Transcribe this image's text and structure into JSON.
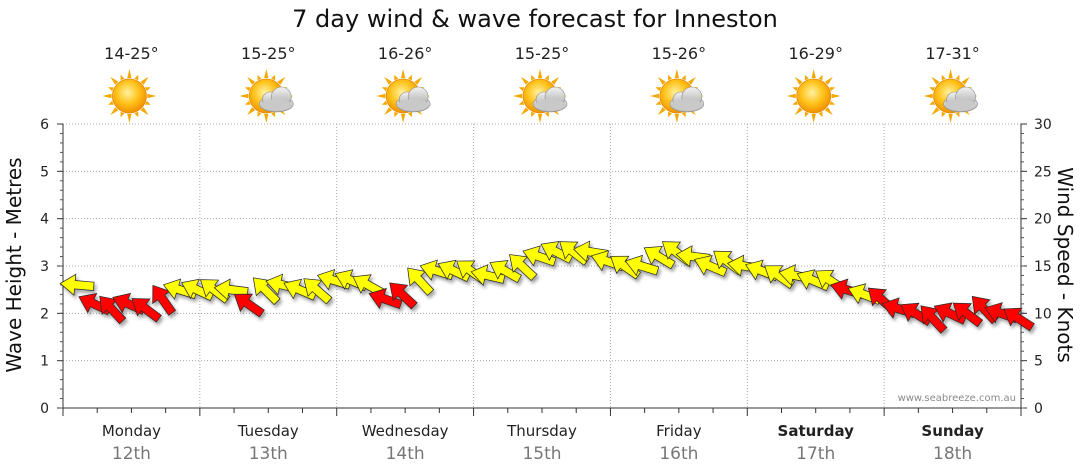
{
  "chart_data": {
    "type": "line",
    "title": "7 day wind & wave forecast for Inneston",
    "ylabel_left": "Wave Height - Metres",
    "ylabel_right": "Wind Speed - Knots",
    "ylim_left": [
      0,
      6
    ],
    "ylim_right": [
      0,
      30
    ],
    "yticks_left": [
      "0",
      "1",
      "2",
      "3",
      "4",
      "5",
      "6"
    ],
    "yticks_right": [
      "0",
      "5",
      "10",
      "15",
      "20",
      "25",
      "30"
    ],
    "grid": true,
    "days": [
      {
        "day": "Monday",
        "date": "12th",
        "temp": "14-25°",
        "icon": "sun-icon",
        "bold": false
      },
      {
        "day": "Tuesday",
        "date": "13th",
        "temp": "15-25°",
        "icon": "sun-cloud-icon",
        "bold": false
      },
      {
        "day": "Wednesday",
        "date": "14th",
        "temp": "16-26°",
        "icon": "sun-cloud-icon",
        "bold": false
      },
      {
        "day": "Thursday",
        "date": "15th",
        "temp": "15-25°",
        "icon": "sun-cloud-icon",
        "bold": false
      },
      {
        "day": "Friday",
        "date": "16th",
        "temp": "15-26°",
        "icon": "sun-cloud-icon",
        "bold": false
      },
      {
        "day": "Saturday",
        "date": "17th",
        "temp": "16-29°",
        "icon": "sun-icon",
        "bold": true
      },
      {
        "day": "Sunday",
        "date": "18th",
        "temp": "17-31°",
        "icon": "sun-cloud-icon",
        "bold": true
      }
    ],
    "series": [
      {
        "name": "Wind Speed",
        "units": "knots",
        "x_hours": [
          0,
          3,
          6,
          9,
          12,
          15,
          18,
          21,
          24,
          27,
          30,
          33,
          36,
          39,
          42,
          45,
          48,
          51,
          54,
          57,
          60,
          63,
          66,
          69,
          72,
          75,
          78,
          81,
          84,
          87,
          90,
          93,
          96,
          99,
          102,
          105,
          108,
          111,
          114,
          117,
          120,
          123,
          126,
          129,
          132,
          135,
          138,
          141,
          144,
          147,
          150,
          153,
          156,
          159,
          162,
          165
        ],
        "values": [
          13.0,
          11.0,
          10.5,
          11.0,
          10.5,
          11.5,
          12.5,
          12.5,
          12.5,
          12.5,
          11.0,
          12.5,
          13.0,
          12.5,
          12.5,
          13.5,
          13.5,
          13.0,
          11.5,
          12.0,
          13.5,
          14.5,
          14.5,
          14.5,
          14.0,
          14.5,
          15.0,
          16.0,
          16.5,
          16.5,
          16.5,
          15.5,
          15.0,
          15.0,
          16.0,
          16.5,
          16.0,
          15.0,
          15.5,
          15.0,
          14.5,
          14.0,
          14.0,
          13.5,
          13.5,
          12.5,
          12.0,
          11.5,
          10.5,
          10.0,
          9.5,
          10.0,
          10.0,
          10.5,
          10.0,
          9.5
        ],
        "colors": [
          "Y",
          "R",
          "R",
          "R",
          "R",
          "R",
          "Y",
          "Y",
          "Y",
          "Y",
          "R",
          "Y",
          "Y",
          "Y",
          "Y",
          "Y",
          "Y",
          "Y",
          "R",
          "R",
          "Y",
          "Y",
          "Y",
          "Y",
          "Y",
          "Y",
          "Y",
          "Y",
          "Y",
          "Y",
          "Y",
          "Y",
          "Y",
          "Y",
          "Y",
          "Y",
          "Y",
          "Y",
          "Y",
          "Y",
          "Y",
          "Y",
          "Y",
          "Y",
          "Y",
          "R",
          "Y",
          "R",
          "R",
          "R",
          "R",
          "R",
          "R",
          "R",
          "R",
          "R"
        ]
      }
    ],
    "colors": {
      "strong": "#ff0000",
      "moderate": "#ffff00",
      "grid": "#aaaaaa"
    },
    "watermark": "www.seabreeze.com.au"
  }
}
